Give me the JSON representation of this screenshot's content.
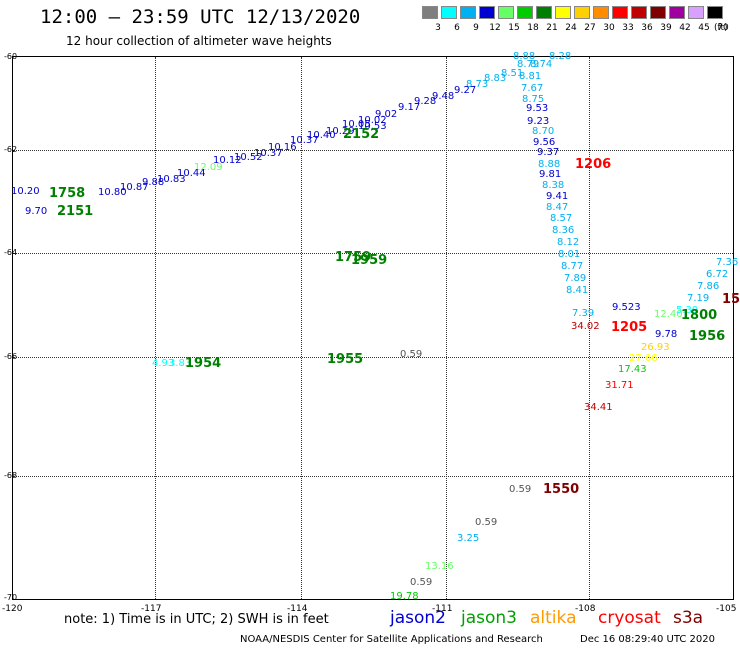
{
  "title": "12:00 – 23:59 UTC 12/13/2020",
  "subtitle": "12 hour collection of altimeter wave heights",
  "scale": {
    "unit": "(ft)",
    "bins": [
      {
        "label": "3",
        "color": "#7f7f7f"
      },
      {
        "label": "6",
        "color": "#00ffff"
      },
      {
        "label": "9",
        "color": "#00b0f0"
      },
      {
        "label": "12",
        "color": "#0000d0"
      },
      {
        "label": "15",
        "color": "#66ff66"
      },
      {
        "label": "18",
        "color": "#00cc00"
      },
      {
        "label": "21",
        "color": "#008000"
      },
      {
        "label": "24",
        "color": "#ffff00"
      },
      {
        "label": "27",
        "color": "#ffd000"
      },
      {
        "label": "30",
        "color": "#ff8c00"
      },
      {
        "label": "33",
        "color": "#ff0000"
      },
      {
        "label": "36",
        "color": "#c00000"
      },
      {
        "label": "39",
        "color": "#800000"
      },
      {
        "label": "42",
        "color": "#a000a0"
      },
      {
        "label": "45",
        "color": "#d8a0ff"
      },
      {
        "label": "70",
        "color": "#000000"
      }
    ]
  },
  "map": {
    "lat_labels": [
      "-60",
      "-62",
      "-64",
      "-66",
      "-68",
      "-70"
    ],
    "lon_labels": [
      "-120",
      "-117",
      "-114",
      "-111",
      "-108",
      "-105"
    ]
  },
  "observations": [
    {
      "v": "8.88",
      "c": "#00b0f0"
    },
    {
      "v": "8.28",
      "c": "#00b0f0"
    },
    {
      "v": "8.79",
      "c": "#00b0f0"
    },
    {
      "v": "8.74",
      "c": "#00b0f0"
    },
    {
      "v": "8.51",
      "c": "#00b0f0"
    },
    {
      "v": "8.81",
      "c": "#00b0f0"
    },
    {
      "v": "8.83",
      "c": "#00b0f0"
    },
    {
      "v": "8.73",
      "c": "#00b0f0"
    },
    {
      "v": "9.27",
      "c": "#0000d0"
    },
    {
      "v": "9.48",
      "c": "#0000d0"
    },
    {
      "v": "9.28",
      "c": "#0000d0"
    },
    {
      "v": "9.17",
      "c": "#0000d0"
    },
    {
      "v": "9.02",
      "c": "#0000d0"
    },
    {
      "v": "10.02",
      "c": "#0000d0"
    },
    {
      "v": "10.05",
      "c": "#0000d0"
    },
    {
      "v": "10.53",
      "c": "#0000d0"
    },
    {
      "v": "10.29",
      "c": "#0000d0"
    },
    {
      "v": "10.40",
      "c": "#0000d0"
    },
    {
      "v": "10.37",
      "c": "#0000d0"
    },
    {
      "v": "10.16",
      "c": "#0000d0"
    },
    {
      "v": "10.37",
      "c": "#0000d0"
    },
    {
      "v": "10.52",
      "c": "#0000d0"
    },
    {
      "v": "10.12",
      "c": "#0000d0"
    },
    {
      "v": "12.09",
      "c": "#66ff66"
    },
    {
      "v": "10.44",
      "c": "#0000d0"
    },
    {
      "v": "10.83",
      "c": "#0000d0"
    },
    {
      "v": "9.88",
      "c": "#0000d0"
    },
    {
      "v": "10.87",
      "c": "#0000d0"
    },
    {
      "v": "10.80",
      "c": "#0000d0"
    },
    {
      "v": "10.20",
      "c": "#0000d0"
    },
    {
      "v": "9.70",
      "c": "#0000d0"
    },
    {
      "v": "7.67",
      "c": "#00b0f0"
    },
    {
      "v": "8.75",
      "c": "#00b0f0"
    },
    {
      "v": "9.53",
      "c": "#0000d0"
    },
    {
      "v": "9.23",
      "c": "#0000d0"
    },
    {
      "v": "8.70",
      "c": "#00b0f0"
    },
    {
      "v": "9.56",
      "c": "#0000d0"
    },
    {
      "v": "9.37",
      "c": "#0000d0"
    },
    {
      "v": "8.88",
      "c": "#00b0f0"
    },
    {
      "v": "9.81",
      "c": "#0000d0"
    },
    {
      "v": "8.38",
      "c": "#00b0f0"
    },
    {
      "v": "9.41",
      "c": "#0000d0"
    },
    {
      "v": "8.47",
      "c": "#00b0f0"
    },
    {
      "v": "8.57",
      "c": "#00b0f0"
    },
    {
      "v": "8.36",
      "c": "#00b0f0"
    },
    {
      "v": "8.12",
      "c": "#00b0f0"
    },
    {
      "v": "8.01",
      "c": "#00b0f0"
    },
    {
      "v": "8.77",
      "c": "#00b0f0"
    },
    {
      "v": "7.89",
      "c": "#00b0f0"
    },
    {
      "v": "8.41",
      "c": "#00b0f0"
    },
    {
      "v": "7.39",
      "c": "#00b0f0"
    },
    {
      "v": "9.523",
      "c": "#0000d0"
    },
    {
      "v": "34.02",
      "c": "#c00000"
    },
    {
      "v": "9.78",
      "c": "#0000d0"
    },
    {
      "v": "7.19",
      "c": "#00b0f0"
    },
    {
      "v": "7.86",
      "c": "#00b0f0"
    },
    {
      "v": "6.72",
      "c": "#00b0f0"
    },
    {
      "v": "7.36",
      "c": "#00b0f0"
    },
    {
      "v": "12.40",
      "c": "#66ff66"
    },
    {
      "v": "5.39",
      "c": "#00ffff"
    },
    {
      "v": "26.93",
      "c": "#ffd000"
    },
    {
      "v": "27.66",
      "c": "#ffff00"
    },
    {
      "v": "17.43",
      "c": "#00cc00"
    },
    {
      "v": "31.71",
      "c": "#ff0000"
    },
    {
      "v": "34.41",
      "c": "#c00000"
    },
    {
      "v": "0.59",
      "c": "#555555"
    },
    {
      "v": "0.59",
      "c": "#555555"
    },
    {
      "v": "3.25",
      "c": "#00b0f0"
    },
    {
      "v": "13.16",
      "c": "#66ff66"
    },
    {
      "v": "0.59",
      "c": "#555555"
    },
    {
      "v": "19.78",
      "c": "#00cc00"
    },
    {
      "v": "4.93",
      "c": "#00ffff"
    },
    {
      "v": "3.83",
      "c": "#00ffff"
    },
    {
      "v": "0.59",
      "c": "#555555"
    }
  ],
  "times": [
    {
      "t": "2152",
      "c": "#008000"
    },
    {
      "t": "1206",
      "c": "#ff0000"
    },
    {
      "t": "1758",
      "c": "#008000"
    },
    {
      "t": "2151",
      "c": "#008000"
    },
    {
      "t": "1759",
      "c": "#008000"
    },
    {
      "t": "1959",
      "c": "#008000"
    },
    {
      "t": "1205",
      "c": "#ff0000"
    },
    {
      "t": "1800",
      "c": "#008000"
    },
    {
      "t": "1956",
      "c": "#008000"
    },
    {
      "t": "15",
      "c": "#800000"
    },
    {
      "t": "1954",
      "c": "#008000"
    },
    {
      "t": "1955",
      "c": "#008000"
    },
    {
      "t": "1550",
      "c": "#800000"
    }
  ],
  "note": "note:  1) Time is in UTC;  2) SWH is in feet",
  "legend": [
    {
      "name": "jason2",
      "color": "#0000d0"
    },
    {
      "name": "jason3",
      "color": "#00a000"
    },
    {
      "name": "altika",
      "color": "#ff9900"
    },
    {
      "name": "cryosat",
      "color": "#ff0000"
    },
    {
      "name": "s3a",
      "color": "#800000"
    }
  ],
  "credit": "NOAA/NESDIS Center for Satellite Applications and Research",
  "timestamp": "Dec 16 08:29:40 UTC 2020"
}
